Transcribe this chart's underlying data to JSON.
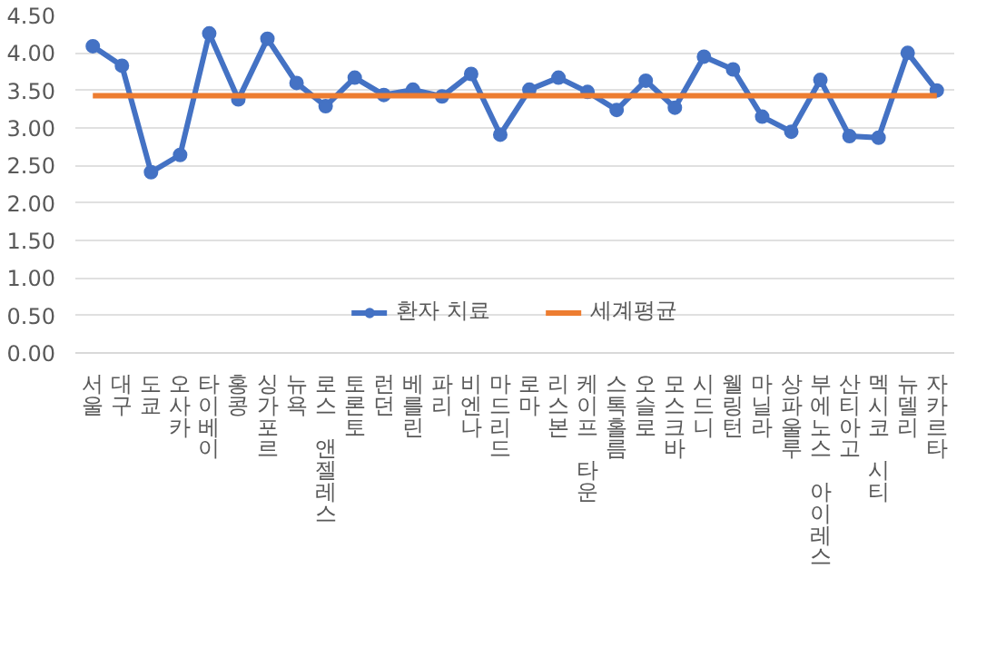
{
  "chart_data": {
    "type": "line",
    "categories": [
      "서울",
      "대구",
      "도쿄",
      "오사카",
      "타이베이",
      "홍콩",
      "싱가포르",
      "뉴욕",
      "로스 앤젤레스",
      "토론토",
      "런던",
      "베를린",
      "파리",
      "비엔나",
      "마드리드",
      "로마",
      "리스본",
      "케이프 타운",
      "스톡홀름",
      "오슬로",
      "모스크바",
      "시드니",
      "웰링턴",
      "마닐라",
      "상파울루",
      "부에노스 아이레스",
      "산티아고",
      "멕시코 시티",
      "뉴델리",
      "자카르타"
    ],
    "series": [
      {
        "name": "환자 치료",
        "color": "#4472c4",
        "marker": "circle",
        "values": [
          4.09,
          3.83,
          2.41,
          2.64,
          4.26,
          3.38,
          4.19,
          3.6,
          3.29,
          3.67,
          3.44,
          3.51,
          3.42,
          3.72,
          2.91,
          3.51,
          3.67,
          3.48,
          3.24,
          3.63,
          3.27,
          3.95,
          3.78,
          3.15,
          2.95,
          3.64,
          2.89,
          2.87,
          4.0,
          3.5
        ]
      },
      {
        "name": "세계평균",
        "color": "#ed7d31",
        "marker": "none",
        "values": [
          3.43,
          3.43,
          3.43,
          3.43,
          3.43,
          3.43,
          3.43,
          3.43,
          3.43,
          3.43,
          3.43,
          3.43,
          3.43,
          3.43,
          3.43,
          3.43,
          3.43,
          3.43,
          3.43,
          3.43,
          3.43,
          3.43,
          3.43,
          3.43,
          3.43,
          3.43,
          3.43,
          3.43,
          3.43,
          3.43
        ]
      }
    ],
    "ylim": [
      0,
      4.5
    ],
    "yticks": [
      {
        "value": 0,
        "label": "0.00"
      },
      {
        "value": 0.5,
        "label": "0.50"
      },
      {
        "value": 1,
        "label": "1.00"
      },
      {
        "value": 1.5,
        "label": "1.50"
      },
      {
        "value": 2,
        "label": "2.00"
      },
      {
        "value": 2.5,
        "label": "2.50"
      },
      {
        "value": 3,
        "label": "3.00"
      },
      {
        "value": 3.5,
        "label": "3.50"
      },
      {
        "value": 4,
        "label": "4.00"
      },
      {
        "value": 4.5,
        "label": "4.50"
      }
    ],
    "grid": "y",
    "legend": "bottom"
  }
}
